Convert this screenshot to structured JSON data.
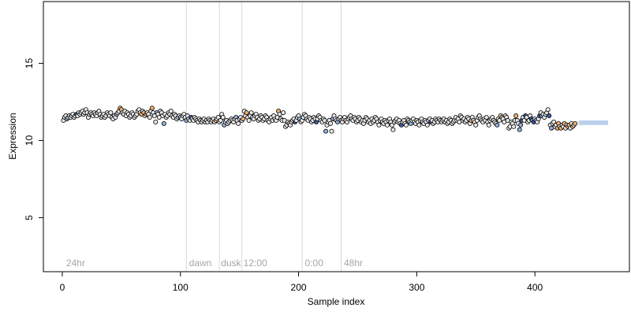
{
  "chart_data": {
    "type": "scatter",
    "title": "",
    "xlabel": "Sample index",
    "ylabel": "Expression",
    "xlim": [
      -16,
      480
    ],
    "ylim": [
      1.5,
      19
    ],
    "x_ticks": [
      0,
      100,
      200,
      300,
      400
    ],
    "x_tick_labels": [
      "0",
      "100",
      "200",
      "300",
      "400"
    ],
    "y_ticks": [
      5,
      10,
      15
    ],
    "y_tick_labels": [
      "5",
      "10",
      "15"
    ],
    "grid": false,
    "legend": null,
    "marker": "open-circle-filled",
    "colors": {
      "outline": "#000000",
      "fill_light": "#e8e8e8",
      "fill_orange": "#f0b070",
      "fill_blue": "#8fb0e0",
      "fill_dark_blue": "#3c5aa8",
      "divider": "#d9d9d9",
      "region_text": "#a6a6a6"
    },
    "dividers": [
      105,
      133,
      152,
      203,
      236
    ],
    "region_labels": [
      {
        "text": "24hr",
        "x": 2
      },
      {
        "text": "dawn",
        "x": 106
      },
      {
        "text": "dusk",
        "x": 133
      },
      {
        "text": "12:00",
        "x": 152
      },
      {
        "text": "0:00",
        "x": 204
      },
      {
        "text": "48hr",
        "x": 237
      }
    ],
    "points_start_x": 1,
    "points_y": [
      11.3,
      11.5,
      11.6,
      11.4,
      11.5,
      11.6,
      11.5,
      11.6,
      11.7,
      11.5,
      11.6,
      11.7,
      11.6,
      11.8,
      11.7,
      11.8,
      11.9,
      11.7,
      11.8,
      12.0,
      11.8,
      11.5,
      11.7,
      11.8,
      11.7,
      11.6,
      11.8,
      11.7,
      11.6,
      11.8,
      11.9,
      11.7,
      11.5,
      11.6,
      11.7,
      11.5,
      11.6,
      11.8,
      11.7,
      11.6,
      11.8,
      11.5,
      11.4,
      11.6,
      11.5,
      11.7,
      11.8,
      11.9,
      12.1,
      12.0,
      11.8,
      11.7,
      11.9,
      11.6,
      11.8,
      11.7,
      11.5,
      11.6,
      11.8,
      11.7,
      11.5,
      11.6,
      11.7,
      11.9,
      12.0,
      11.8,
      11.7,
      11.9,
      11.8,
      11.6,
      11.7,
      11.8,
      11.7,
      11.5,
      11.9,
      12.1,
      11.8,
      11.6,
      11.2,
      11.8,
      11.7,
      11.5,
      11.9,
      11.8,
      11.6,
      11.1,
      11.7,
      11.5,
      11.6,
      11.8,
      11.7,
      11.9,
      11.6,
      11.5,
      11.7,
      11.6,
      11.4,
      11.5,
      11.6,
      11.5,
      11.4,
      11.6,
      11.7,
      11.5,
      11.3,
      11.6,
      11.4,
      11.3,
      11.5,
      11.4,
      11.3,
      11.5,
      11.4,
      11.3,
      11.2,
      11.4,
      11.3,
      11.2,
      11.3,
      11.4,
      11.2,
      11.3,
      11.2,
      11.4,
      11.3,
      11.2,
      11.3,
      11.4,
      11.2,
      11.3,
      11.4,
      11.5,
      11.2,
      11.3,
      11.7,
      11.5,
      11.0,
      11.2,
      11.3,
      11.1,
      11.2,
      11.3,
      11.4,
      11.3,
      11.2,
      11.4,
      11.5,
      11.3,
      11.1,
      11.4,
      11.5,
      11.3,
      11.4,
      11.9,
      11.6,
      11.8,
      11.5,
      11.3,
      11.6,
      11.8,
      11.5,
      11.4,
      11.6,
      11.7,
      11.5,
      11.3,
      11.4,
      11.6,
      11.5,
      11.3,
      11.4,
      11.6,
      11.5,
      11.3,
      11.2,
      11.4,
      11.5,
      11.3,
      11.6,
      11.4,
      11.3,
      11.5,
      11.9,
      11.7,
      11.4,
      11.3,
      11.8,
      11.3,
      10.9,
      11.0,
      11.2,
      11.1,
      11.0,
      11.2,
      11.3,
      11.4,
      11.2,
      11.3,
      11.5,
      11.6,
      11.4,
      11.2,
      11.3,
      11.5,
      11.7,
      11.6,
      11.4,
      11.3,
      11.5,
      11.4,
      11.2,
      11.3,
      11.5,
      11.4,
      11.2,
      11.4,
      11.6,
      11.5,
      11.3,
      11.2,
      11.4,
      11.3,
      10.6,
      11.0,
      11.2,
      11.3,
      11.1,
      10.6,
      11.4,
      11.6,
      11.4,
      11.3,
      11.2,
      11.4,
      11.5,
      11.3,
      11.2,
      11.4,
      11.5,
      11.3,
      11.2,
      11.4,
      11.5,
      11.6,
      11.4,
      11.3,
      11.5,
      11.4,
      11.2,
      11.3,
      11.5,
      11.4,
      11.2,
      11.3,
      11.1,
      11.3,
      11.5,
      11.4,
      11.2,
      11.3,
      11.1,
      11.4,
      11.2,
      11.3,
      11.5,
      11.4,
      11.2,
      11.0,
      11.3,
      11.4,
      11.2,
      11.1,
      11.3,
      11.2,
      11.0,
      11.3,
      11.4,
      11.2,
      11.0,
      10.7,
      11.2,
      11.3,
      11.4,
      11.2,
      11.3,
      11.1,
      11.0,
      11.2,
      11.3,
      11.1,
      11.0,
      11.4,
      11.3,
      11.2,
      11.1,
      11.3,
      11.4,
      11.2,
      11.1,
      11.3,
      11.2,
      11.0,
      11.3,
      11.4,
      11.2,
      11.1,
      11.3,
      11.2,
      11.0,
      11.3,
      11.4,
      11.2,
      11.3,
      11.1,
      11.2,
      11.4,
      11.3,
      11.2,
      11.4,
      11.3,
      11.2,
      11.3,
      11.4,
      11.2,
      11.3,
      11.1,
      11.2,
      11.4,
      11.3,
      11.1,
      11.2,
      11.3,
      11.5,
      11.3,
      11.4,
      11.2,
      11.6,
      11.5,
      11.3,
      11.4,
      11.2,
      11.3,
      11.5,
      11.4,
      11.1,
      11.3,
      11.5,
      11.3,
      11.2,
      11.0,
      11.3,
      11.5,
      11.6,
      11.4,
      11.3,
      11.2,
      11.4,
      11.3,
      11.5,
      11.2,
      11.0,
      11.3,
      11.4,
      11.5,
      11.3,
      11.2,
      11.1,
      11.0,
      11.4,
      11.3,
      11.6,
      11.5,
      11.4,
      11.2,
      11.6,
      11.5,
      11.3,
      10.8,
      10.9,
      11.2,
      11.1,
      10.9,
      11.3,
      11.6,
      11.3,
      11.1,
      10.7,
      11.0,
      11.3,
      11.5,
      11.3,
      11.6,
      11.5,
      11.2,
      11.3,
      11.6,
      11.4,
      11.3,
      11.2,
      11.4,
      11.3,
      11.2,
      11.4,
      11.6,
      11.8,
      11.6,
      11.7,
      11.5,
      11.7,
      11.8,
      12.0,
      11.6,
      11.0,
      10.8,
      11.1,
      11.2,
      10.9,
      11.0,
      10.8,
      11.1,
      10.9,
      10.8,
      11.0,
      10.9,
      11.1,
      10.8,
      11.0,
      10.9,
      11.0,
      10.8,
      11.1,
      10.9,
      11.0,
      11.1
    ],
    "fill_groups": [
      {
        "fill": "fill_orange",
        "indices": [
          48,
          49,
          66,
          68,
          70,
          75,
          129,
          152,
          155,
          182,
          191,
          235,
          345,
          371,
          383,
          418,
          419,
          421,
          424,
          427,
          428,
          431,
          433,
          435
        ]
      },
      {
        "fill": "fill_blue",
        "indices": [
          3,
          45,
          79,
          85,
          99,
          104,
          136,
          146,
          200,
          222,
          228,
          232,
          294,
          367,
          386,
          387,
          397,
          400,
          405,
          413,
          437,
          440,
          441,
          442,
          444,
          445,
          446,
          447,
          449,
          450,
          451,
          452,
          453,
          454,
          455,
          456,
          457,
          458,
          459,
          460,
          461
        ]
      },
      {
        "fill": "fill_dark_blue",
        "indices": [
          11,
          108,
          196,
          214,
          286,
          311,
          388,
          391,
          396,
          398,
          403,
          411
        ]
      }
    ],
    "summary_boxes": [
      {
        "x_from": 1,
        "x_to": 5,
        "y_low": 11.3,
        "y_high": 11.6,
        "fill": "fill_blue"
      },
      {
        "x_from": 437,
        "x_to": 462,
        "y_low": 11.0,
        "y_high": 11.3,
        "fill": "fill_blue"
      }
    ]
  }
}
